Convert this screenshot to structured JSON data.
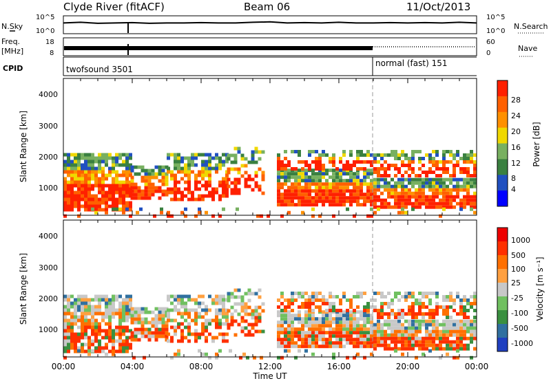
{
  "header": {
    "station": "Clyde River (fitACF)",
    "beam": "Beam 06",
    "date": "11/Oct/2013"
  },
  "chart_data": [
    {
      "type": "line",
      "panel": "noise",
      "left_label": "N.Sky",
      "right_label": "N.Search",
      "left_ticks": [
        "10^5",
        "10^0"
      ],
      "right_ticks": [
        "10^5",
        "10^0"
      ],
      "series": [
        {
          "name": "N.Sky",
          "x_hours": [
            0,
            1,
            2,
            3,
            4,
            5,
            6,
            7,
            8,
            9,
            10,
            11,
            12,
            13,
            14,
            15,
            16,
            17,
            18,
            19,
            20,
            21,
            22,
            23,
            24
          ],
          "values_log10": [
            3.0,
            3.2,
            2.9,
            3.0,
            3.1,
            2.9,
            3.0,
            3.0,
            3.1,
            3.0,
            3.0,
            3.2,
            3.3,
            3.0,
            3.1,
            3.0,
            3.2,
            3.0,
            3.0,
            3.1,
            3.0,
            3.1,
            3.0,
            3.2,
            3.0
          ]
        }
      ]
    },
    {
      "type": "line",
      "panel": "frequency",
      "left_label_1": "Freq.",
      "left_label_2": "[MHz]",
      "right_label": "Nave",
      "left_ticks": [
        "18",
        "8"
      ],
      "right_ticks": [
        "60",
        "0"
      ],
      "series": [
        {
          "name": "Freq.",
          "x_hours": [
            0,
            24
          ],
          "values": [
            11,
            11
          ]
        },
        {
          "name": "Nave",
          "x_hours": [
            0,
            18,
            18,
            24
          ],
          "values": [
            20,
            20,
            23,
            23
          ]
        }
      ]
    },
    {
      "type": "table",
      "panel": "cpid",
      "label": "CPID",
      "segments": [
        {
          "start_hour": 0,
          "end_hour": 18,
          "text": "twofsound 3501"
        },
        {
          "start_hour": 18,
          "end_hour": 24,
          "text": "normal (fast) 151"
        }
      ]
    },
    {
      "type": "heatmap",
      "panel": "power",
      "ylabel": "Slant Range [km]",
      "xlabel": "",
      "ylim": [
        200,
        4600
      ],
      "yticks": [
        "4000",
        "3000",
        "2000",
        "1000"
      ],
      "colorbar_label": "Power [dB]",
      "colorbar_ticks": [
        "28",
        "24",
        "20",
        "16",
        "12",
        "8",
        "4"
      ],
      "colors": [
        "#0000ff",
        "#2050c0",
        "#3a8040",
        "#78b060",
        "#f0d800",
        "#ff9000",
        "#ff6000",
        "#ff2000"
      ]
    },
    {
      "type": "heatmap",
      "panel": "velocity",
      "ylabel": "Slant Range [km]",
      "xlabel": "Time UT",
      "ylim": [
        200,
        4600
      ],
      "yticks": [
        "4000",
        "3000",
        "2000",
        "1000"
      ],
      "xticks": [
        "00:00",
        "04:00",
        "08:00",
        "12:00",
        "16:00",
        "20:00",
        "00:00"
      ],
      "colorbar_label": "Velocity [m s⁻¹]",
      "colorbar_ticks": [
        "1000",
        "500",
        "100",
        "25",
        "-25",
        "-100",
        "-500",
        "-1000"
      ],
      "colors": [
        "#2040c0",
        "#3070a0",
        "#3a9040",
        "#70c060",
        "#c8c8c8",
        "#ffa040",
        "#ff7000",
        "#ff3000",
        "#ee0000"
      ]
    }
  ]
}
